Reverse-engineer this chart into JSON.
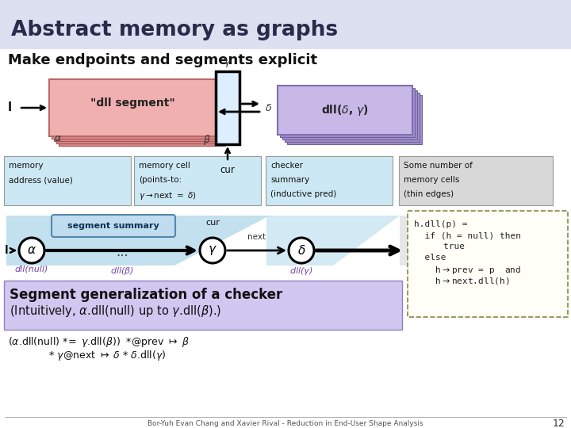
{
  "title": "Abstract memory as graphs",
  "subtitle": "Make endpoints and segments explicit",
  "footer": "Bor-Yuh Evan Chang and Xavier Rival - Reduction in End-User Shape Analysis",
  "page_num": "12",
  "title_bg": "#dde0f0",
  "white": "#ffffff",
  "pink_light": "#f0b0b0",
  "pink_dark": "#d88888",
  "purple_light": "#c8b8e8",
  "purple_dark": "#a090c8",
  "cell_fill": "#ddeeff",
  "legend_blue": "#cce8f4",
  "legend_gray": "#d8d8d8",
  "seg_gen_purple": "#d0c8f0",
  "cyan_tri": "#a8d4e8",
  "node_white": "#ffffff",
  "code_bg": "#fffff8"
}
